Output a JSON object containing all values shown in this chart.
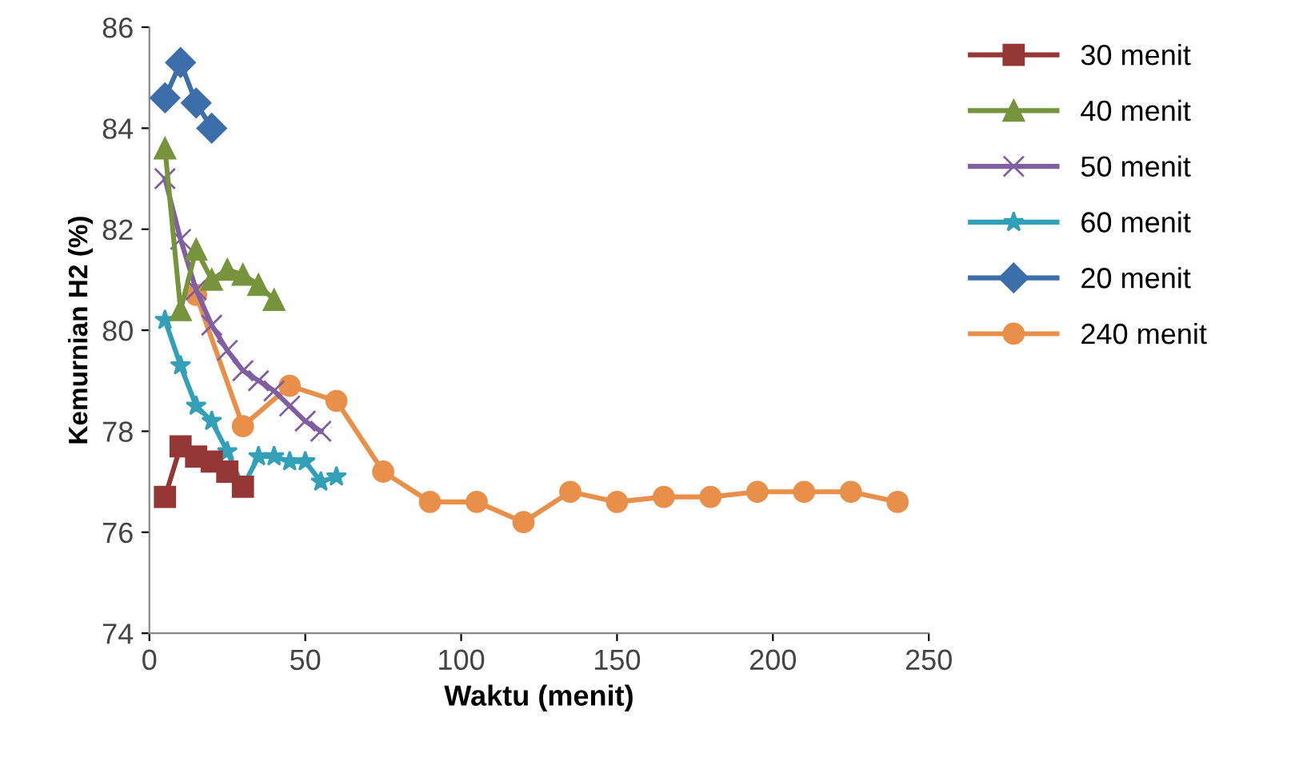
{
  "chart_data": {
    "type": "line",
    "xlabel": "Waktu (menit)",
    "ylabel": "Kemurnian H2 (%)",
    "xlim": [
      0,
      250
    ],
    "xticks": [
      0,
      50,
      100,
      150,
      200,
      250
    ],
    "ylim": [
      74,
      86
    ],
    "yticks": [
      74,
      76,
      78,
      80,
      82,
      84,
      86
    ],
    "grid": false,
    "legend": "right",
    "line_style": "solid",
    "series": [
      {
        "name": "30 menit",
        "color": "#953735",
        "marker": "square",
        "x": [
          5,
          10,
          15,
          20,
          25,
          30
        ],
        "values": [
          76.7,
          77.7,
          77.5,
          77.4,
          77.2,
          76.9
        ]
      },
      {
        "name": "40 menit",
        "color": "#77933c",
        "marker": "triangle",
        "x": [
          5,
          10,
          15,
          20,
          25,
          30,
          35,
          40
        ],
        "values": [
          83.6,
          80.4,
          81.6,
          81.0,
          81.2,
          81.1,
          80.9,
          80.6
        ]
      },
      {
        "name": "50 menit",
        "color": "#7f5fa0",
        "marker": "cross",
        "x": [
          5,
          10,
          15,
          20,
          25,
          30,
          35,
          40,
          45,
          50,
          55
        ],
        "values": [
          83.0,
          81.8,
          80.8,
          80.1,
          79.6,
          79.2,
          79.0,
          78.8,
          78.5,
          78.2,
          78.0
        ]
      },
      {
        "name": "60 menit",
        "color": "#31a0b8",
        "marker": "star",
        "x": [
          5,
          10,
          15,
          20,
          25,
          30,
          35,
          40,
          45,
          50,
          55,
          60
        ],
        "values": [
          80.2,
          79.3,
          78.5,
          78.2,
          77.6,
          76.9,
          77.5,
          77.5,
          77.4,
          77.4,
          77.0,
          77.1
        ]
      },
      {
        "name": "20 menit",
        "color": "#3c6eaa",
        "marker": "diamond",
        "x": [
          5,
          10,
          15,
          20
        ],
        "values": [
          84.6,
          85.3,
          84.5,
          84.0
        ]
      },
      {
        "name": "240 menit",
        "color": "#e8904a",
        "marker": "circle",
        "x": [
          15,
          30,
          45,
          60,
          75,
          90,
          105,
          120,
          135,
          150,
          165,
          180,
          195,
          210,
          225,
          240
        ],
        "values": [
          80.7,
          78.1,
          78.9,
          78.6,
          77.2,
          76.6,
          76.6,
          76.2,
          76.8,
          76.6,
          76.7,
          76.7,
          76.8,
          76.8,
          76.8,
          76.6
        ]
      }
    ]
  }
}
